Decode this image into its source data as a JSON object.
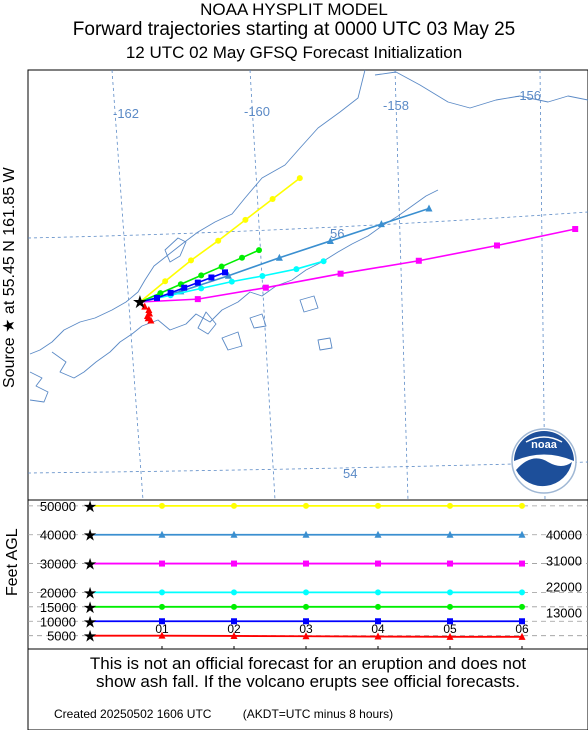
{
  "header": {
    "model": "NOAA HYSPLIT MODEL",
    "title": "Forward trajectories starting at 0000 UTC 03 May 25",
    "subtitle": "12 UTC 02 May    GFSQ  Forecast Initialization"
  },
  "source_label": "Source ★ at  55.45 N  161.85 W",
  "y_axis_label": "Feet AGL",
  "logo_text": "noaa",
  "chart_data": [
    {
      "type": "map-trajectory",
      "longitude_labels": [
        "-162",
        "-160",
        "-158",
        "-156"
      ],
      "latitude_labels": [
        "56",
        "54"
      ],
      "source": {
        "lat": 55.45,
        "lon": -161.85
      },
      "series": [
        {
          "height_ft": 50000,
          "color": "#ffff00",
          "marker": "circle",
          "points": [
            [
              -161.85,
              55.45
            ],
            [
              -161.48,
              55.62
            ],
            [
              -161.1,
              55.79
            ],
            [
              -160.7,
              55.95
            ],
            [
              -160.3,
              56.12
            ],
            [
              -159.9,
              56.29
            ],
            [
              -159.5,
              56.46
            ]
          ]
        },
        {
          "height_ft": 40000,
          "color": "#3a8fd0",
          "marker": "triangle",
          "points": [
            [
              -161.85,
              55.45
            ],
            [
              -161.25,
              55.53
            ],
            [
              -160.55,
              55.65
            ],
            [
              -159.8,
              55.79
            ],
            [
              -159.05,
              55.92
            ],
            [
              -158.3,
              56.05
            ],
            [
              -157.6,
              56.17
            ]
          ]
        },
        {
          "height_ft": 30000,
          "color": "#ff00ff",
          "marker": "square",
          "points": [
            [
              -161.85,
              55.45
            ],
            [
              -161.0,
              55.46
            ],
            [
              -160.0,
              55.54
            ],
            [
              -158.9,
              55.64
            ],
            [
              -157.75,
              55.73
            ],
            [
              -156.6,
              55.84
            ],
            [
              -155.45,
              55.96
            ]
          ]
        },
        {
          "height_ft": 20000,
          "color": "#00ffff",
          "marker": "circle",
          "points": [
            [
              -161.85,
              55.45
            ],
            [
              -161.4,
              55.5
            ],
            [
              -160.95,
              55.55
            ],
            [
              -160.5,
              55.6
            ],
            [
              -160.05,
              55.64
            ],
            [
              -159.55,
              55.69
            ],
            [
              -159.15,
              55.75
            ]
          ]
        },
        {
          "height_ft": 15000,
          "color": "#00ee00",
          "marker": "circle",
          "points": [
            [
              -161.85,
              55.45
            ],
            [
              -161.55,
              55.52
            ],
            [
              -161.25,
              55.59
            ],
            [
              -160.95,
              55.66
            ],
            [
              -160.65,
              55.73
            ],
            [
              -160.35,
              55.8
            ],
            [
              -160.1,
              55.86
            ]
          ]
        },
        {
          "height_ft": 10000,
          "color": "#0000ff",
          "marker": "square",
          "points": [
            [
              -161.85,
              55.45
            ],
            [
              -161.6,
              55.48
            ],
            [
              -161.4,
              55.52
            ],
            [
              -161.2,
              55.56
            ],
            [
              -161.0,
              55.6
            ],
            [
              -160.8,
              55.64
            ],
            [
              -160.6,
              55.68
            ]
          ]
        },
        {
          "height_ft": 5000,
          "color": "#ff0000",
          "marker": "triangle",
          "points": [
            [
              -161.85,
              55.45
            ],
            [
              -161.78,
              55.41
            ],
            [
              -161.72,
              55.38
            ],
            [
              -161.71,
              55.35
            ],
            [
              -161.74,
              55.33
            ],
            [
              -161.73,
              55.31
            ],
            [
              -161.69,
              55.29
            ]
          ]
        }
      ]
    },
    {
      "type": "line",
      "x_ticks": [
        "01",
        "02",
        "03",
        "04",
        "05",
        "06"
      ],
      "y_ticks_left": [
        "50000",
        "40000",
        "30000",
        "20000",
        "15000",
        "10000",
        "5000"
      ],
      "y_ticks_right": [
        "40000",
        "31000",
        "22000",
        "13000"
      ],
      "ylim": [
        3500,
        51000
      ],
      "series": [
        {
          "height_ft": 50000,
          "color": "#ffff00",
          "marker": "circle",
          "values": [
            50000,
            50000,
            50000,
            50000,
            50000,
            50000,
            50000
          ]
        },
        {
          "height_ft": 40000,
          "color": "#3a8fd0",
          "marker": "triangle",
          "values": [
            40000,
            40000,
            40000,
            40000,
            40000,
            40000,
            40000
          ]
        },
        {
          "height_ft": 30000,
          "color": "#ff00ff",
          "marker": "square",
          "values": [
            30000,
            30000,
            30000,
            30000,
            30000,
            30000,
            30000
          ]
        },
        {
          "height_ft": 20000,
          "color": "#00ffff",
          "marker": "circle",
          "values": [
            20000,
            20000,
            20000,
            20000,
            20000,
            20000,
            20000
          ]
        },
        {
          "height_ft": 15000,
          "color": "#00ee00",
          "marker": "circle",
          "values": [
            15000,
            15000,
            15000,
            15000,
            15000,
            15000,
            15000
          ]
        },
        {
          "height_ft": 10000,
          "color": "#0000ff",
          "marker": "square",
          "values": [
            10000,
            10000,
            10000,
            10000,
            10000,
            10000,
            10000
          ]
        },
        {
          "height_ft": 5000,
          "color": "#ff0000",
          "marker": "triangle",
          "values": [
            5000,
            5000,
            4900,
            4800,
            4700,
            4600,
            4600
          ]
        }
      ]
    }
  ],
  "disclaimer": {
    "line1": "This is not an official forecast for an eruption and does not",
    "line2": "show ash fall. If the volcano erupts see official forecasts."
  },
  "footer": {
    "created": "Created 20250502 1606 UTC",
    "tz_note": "(AKDT=UTC minus 8 hours)"
  }
}
